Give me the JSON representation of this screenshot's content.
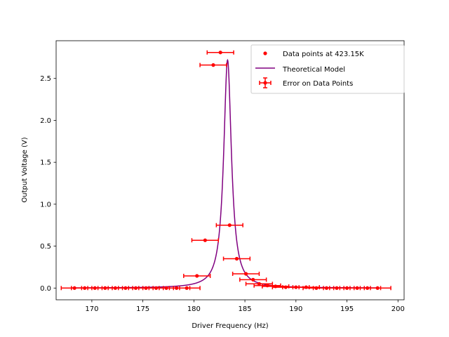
{
  "chart_data": {
    "type": "scatter",
    "title": "",
    "xlabel": "Driver Frequency (Hz)",
    "ylabel": "Output Voltage (V)",
    "xlim": [
      166.5,
      200.6
    ],
    "ylim": [
      -0.14,
      2.95
    ],
    "xticks": [
      170,
      175,
      180,
      185,
      190,
      195,
      200
    ],
    "yticks": [
      0.0,
      0.5,
      1.0,
      1.5,
      2.0,
      2.5
    ],
    "xtick_labels": [
      "170",
      "175",
      "180",
      "185",
      "190",
      "195",
      "200"
    ],
    "ytick_labels": [
      "0.0",
      "0.5",
      "1.0",
      "1.5",
      "2.0",
      "2.5"
    ],
    "grid": false,
    "legend_position": "top-right",
    "colors": {
      "data": "#ff0000",
      "model": "#800080",
      "axes": "#000000"
    },
    "series": [
      {
        "name": "Data points at 423.15K",
        "kind": "points_with_error",
        "x": [
          168.3,
          169.3,
          170.3,
          171.3,
          172.3,
          173.3,
          174.3,
          175.3,
          176.3,
          177.3,
          178.3,
          179.3,
          180.3,
          181.1,
          181.9,
          182.6,
          183.5,
          184.2,
          185.1,
          185.8,
          186.4,
          187.2,
          188.0,
          189.0,
          190.0,
          191.0,
          192.0,
          193.0,
          194.0,
          195.0,
          196.0,
          197.0,
          198.0
        ],
        "y": [
          0.0,
          0.0,
          0.0,
          0.0,
          0.0,
          0.0,
          0.0,
          0.0,
          0.0,
          0.0,
          0.0,
          0.0,
          0.145,
          0.57,
          2.66,
          2.81,
          0.75,
          0.35,
          0.17,
          0.1,
          0.05,
          0.03,
          0.02,
          0.01,
          0.01,
          0.01,
          0.0,
          0.0,
          0.0,
          0.0,
          0.0,
          0.0,
          0.0
        ],
        "xerr": 1.3
      },
      {
        "name": "Theoretical Model",
        "kind": "line",
        "peak_x": 183.3,
        "peak_y": 2.72,
        "half_width": 0.46,
        "x_range": [
          168.0,
          198.0
        ]
      }
    ],
    "legend": [
      {
        "label": "Data points at 423.15K",
        "marker": "dot",
        "color": "#ff0000"
      },
      {
        "label": "Theoretical Model",
        "marker": "line",
        "color": "#800080"
      },
      {
        "label": "Error on Data Points",
        "marker": "errorbar",
        "color": "#ff0000"
      }
    ]
  }
}
